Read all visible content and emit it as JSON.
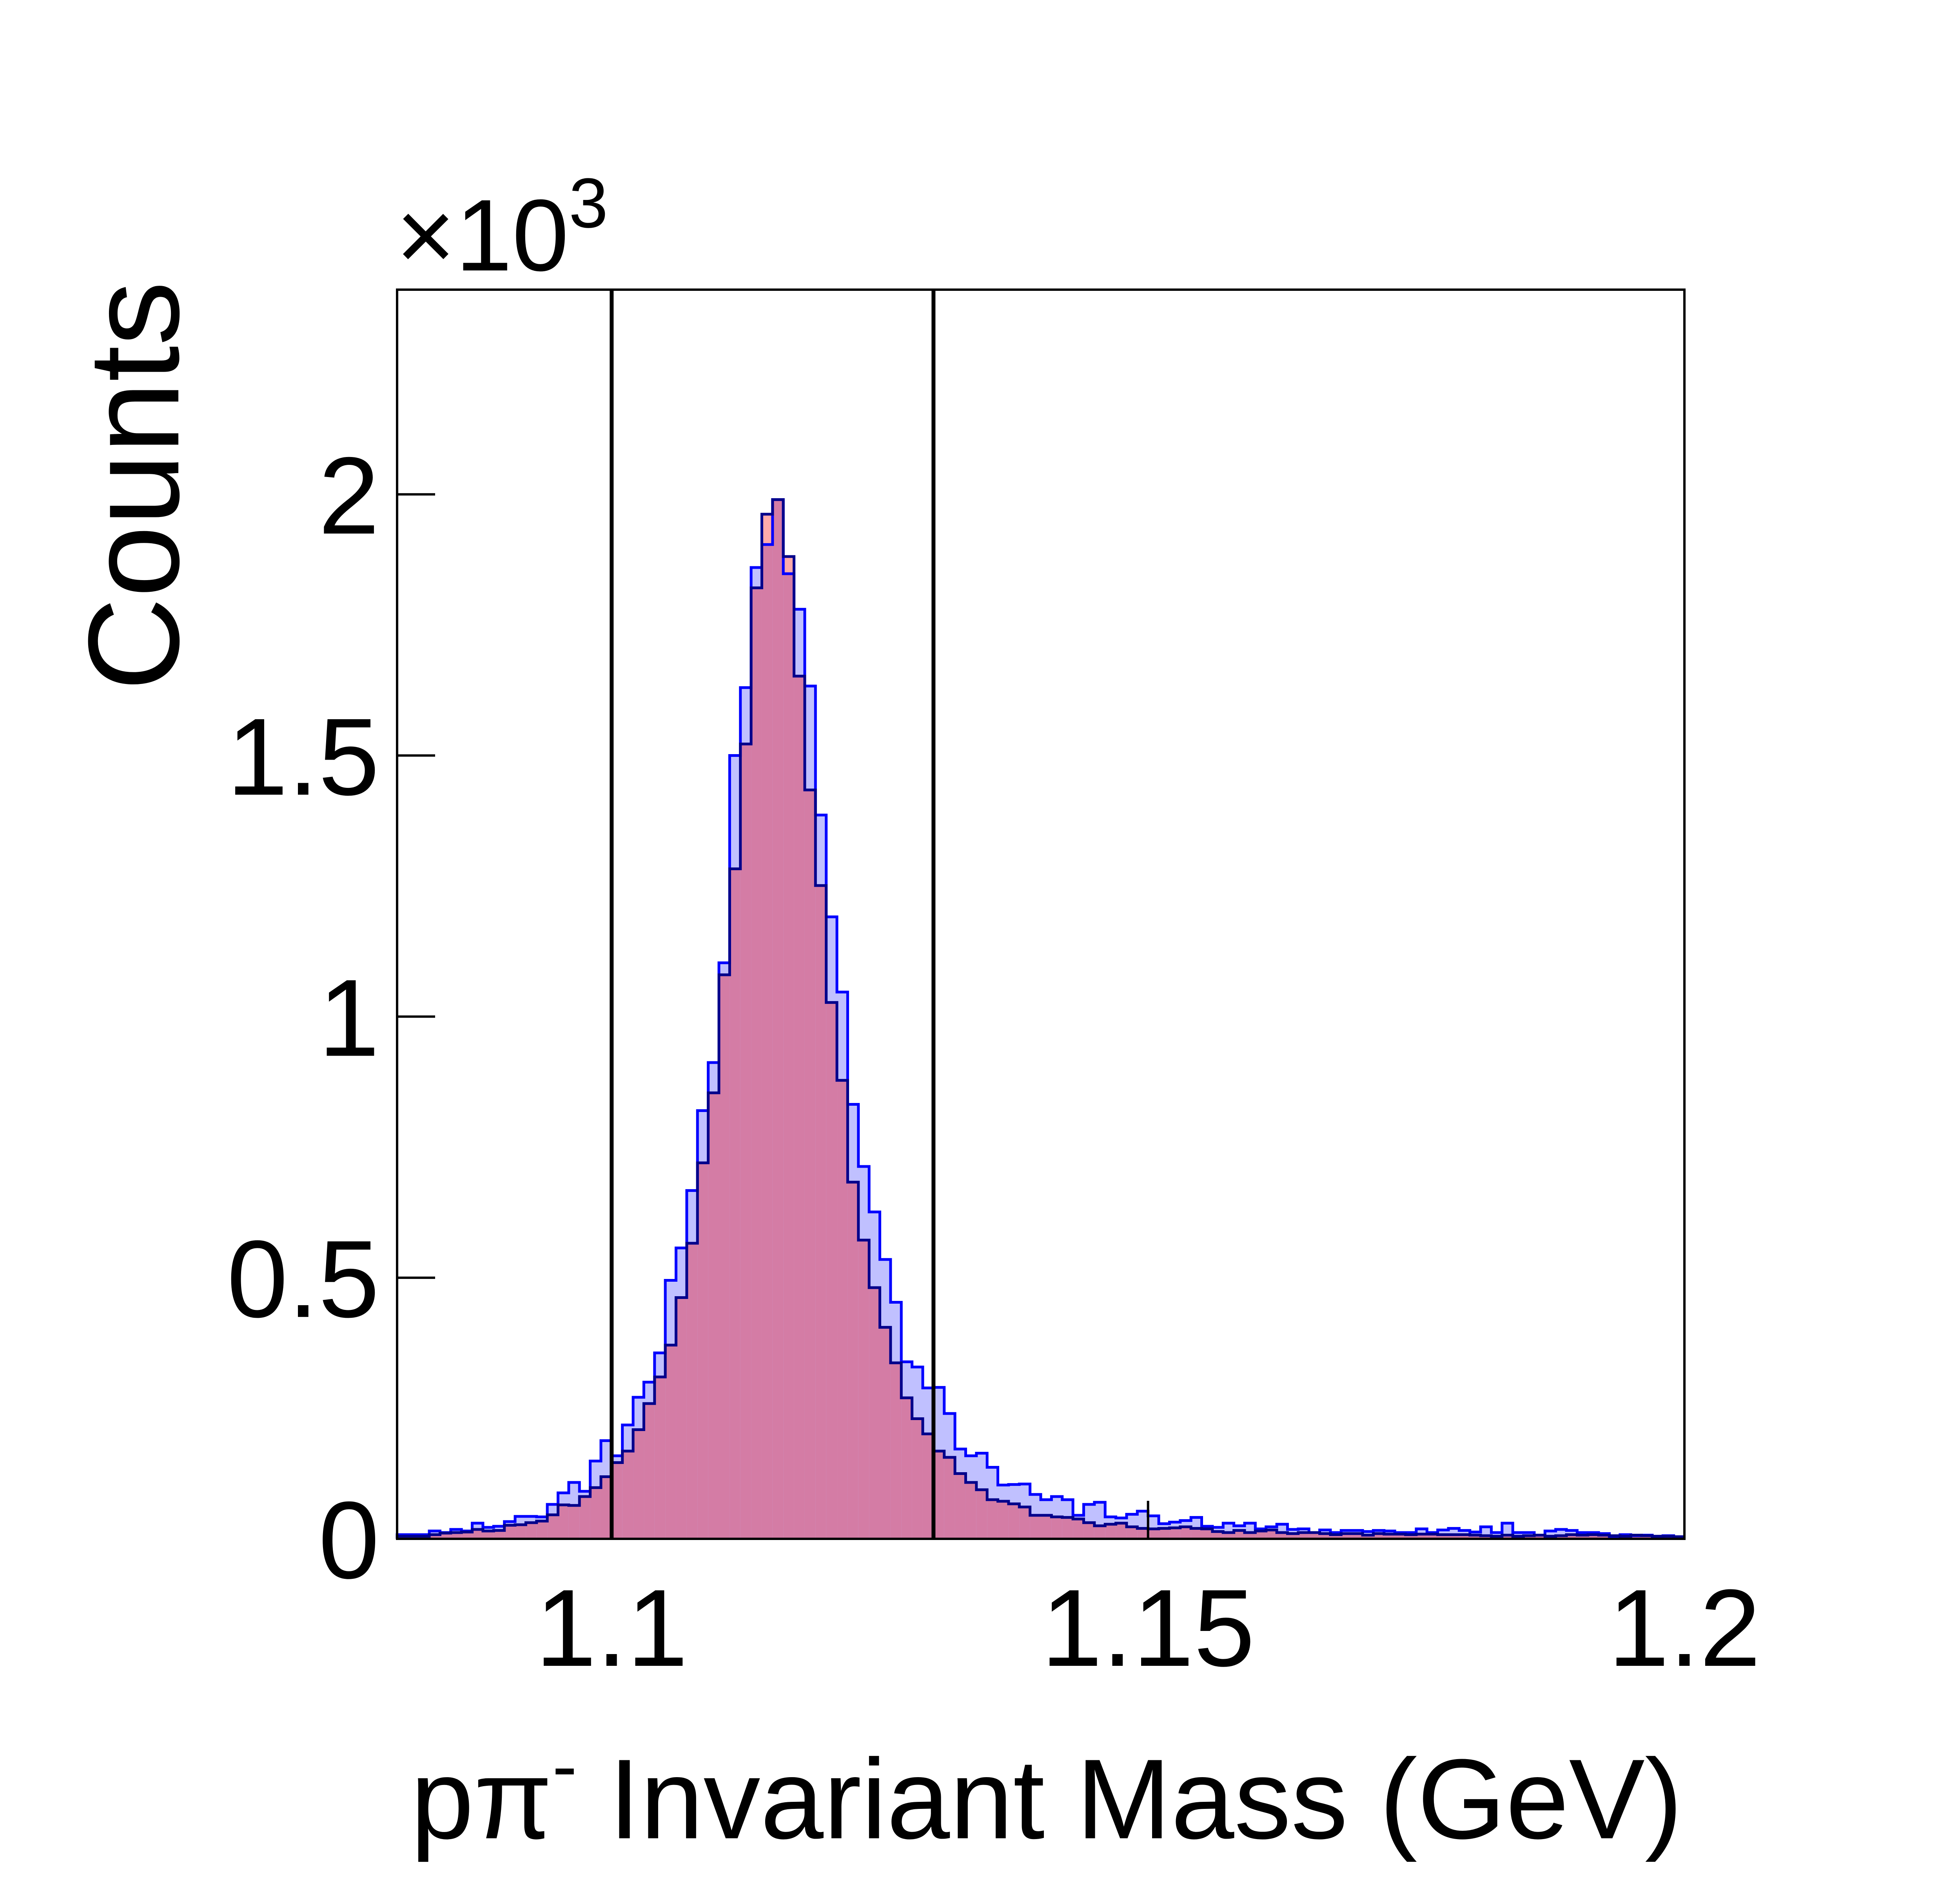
{
  "chart_data": {
    "type": "bar",
    "title": "",
    "ylabel": "Counts",
    "y_multiplier": "×10",
    "y_multiplier_exp": "3",
    "xlabel": {
      "main": "pπ",
      "sup": "-",
      "rest": " Invariant Mass (GeV)"
    },
    "xlim": [
      1.08,
      1.2
    ],
    "ylim": [
      0,
      2392
    ],
    "x_ticks": [
      {
        "value": 1.1,
        "label": "1.1"
      },
      {
        "value": 1.15,
        "label": "1.15"
      },
      {
        "value": 1.2,
        "label": "1.2"
      }
    ],
    "y_ticks": [
      {
        "value": 0,
        "label": "0"
      },
      {
        "value": 500,
        "label": "0.5"
      },
      {
        "value": 1000,
        "label": "1"
      },
      {
        "value": 1500,
        "label": "1.5"
      },
      {
        "value": 2000,
        "label": "2"
      }
    ],
    "vertical_lines": [
      1.1,
      1.13
    ],
    "bin_start": 1.08,
    "bin_width": 0.001,
    "grid": false,
    "series": [
      {
        "color": "#0000ff",
        "fill": "#c0c0ff",
        "values": [
          8,
          8,
          8,
          15,
          12,
          18,
          15,
          30,
          22,
          24,
          33,
          43,
          43,
          42,
          66,
          88,
          108,
          91,
          149,
          188,
          159,
          218,
          271,
          300,
          356,
          495,
          557,
          667,
          820,
          912,
          1103,
          1500,
          1630,
          1860,
          1904,
          1990,
          1848,
          1780,
          1633,
          1386,
          1191,
          1047,
          832,
          713,
          626,
          535,
          453,
          339,
          329,
          289,
          290,
          240,
          172,
          159,
          164,
          137,
          103,
          104,
          105,
          85,
          75,
          81,
          75,
          45,
          66,
          70,
          42,
          40,
          47,
          53,
          44,
          29,
          32,
          35,
          41,
          24,
          22,
          30,
          25,
          30,
          19,
          23,
          28,
          18,
          19,
          12,
          17,
          12,
          16,
          16,
          14,
          16,
          15,
          12,
          12,
          19,
          12,
          17,
          20,
          16,
          13,
          23,
          12,
          30,
          12,
          12,
          7,
          15,
          18,
          16,
          12,
          12,
          10,
          5,
          8,
          6,
          7,
          5,
          6,
          4
        ]
      },
      {
        "color": "#00008b",
        "fill": "#d47ca5",
        "excess_fill": "#ffaaaa",
        "values": [
          5,
          5,
          5,
          8,
          11,
          12,
          13,
          18,
          15,
          16,
          26,
          27,
          31,
          34,
          46,
          65,
          64,
          81,
          98,
          119,
          146,
          168,
          209,
          259,
          310,
          371,
          462,
          566,
          720,
          854,
          1080,
          1283,
          1522,
          1821,
          1962,
          1990,
          1881,
          1652,
          1434,
          1251,
          1027,
          878,
          683,
          572,
          481,
          405,
          337,
          270,
          230,
          201,
          168,
          156,
          125,
          108,
          94,
          75,
          72,
          67,
          61,
          45,
          45,
          42,
          41,
          38,
          31,
          25,
          28,
          30,
          23,
          20,
          19,
          20,
          21,
          23,
          20,
          19,
          14,
          12,
          16,
          12,
          15,
          17,
          12,
          10,
          12,
          12,
          10,
          8,
          10,
          10,
          7,
          10,
          9,
          9,
          8,
          9,
          9,
          8,
          8,
          8,
          7,
          6,
          5,
          7,
          5,
          6,
          7,
          5,
          6,
          8,
          7,
          8,
          7,
          6,
          5,
          7,
          6,
          5,
          5,
          4
        ]
      }
    ]
  }
}
